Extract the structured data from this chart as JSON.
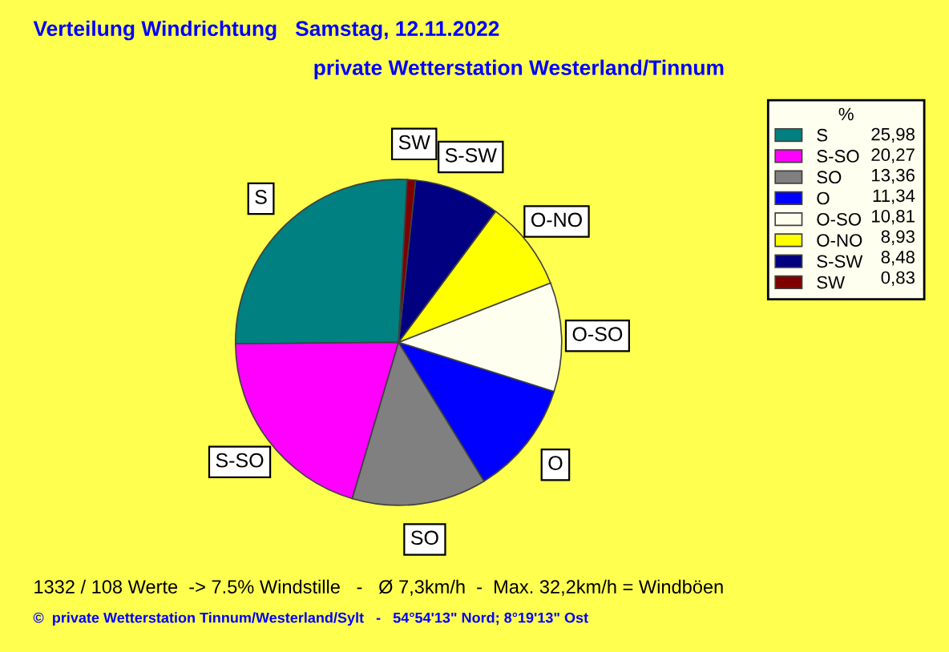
{
  "chart_data": {
    "type": "pie",
    "title": "Verteilung Windrichtung   Samstag, 12.11.2022",
    "subtitle": "private Wetterstation Westerland/Tinnum",
    "categories": [
      "S",
      "S-SO",
      "SO",
      "O",
      "O-SO",
      "O-NO",
      "S-SW",
      "SW"
    ],
    "values": [
      25.98,
      20.27,
      13.36,
      11.34,
      10.81,
      8.93,
      8.48,
      0.83
    ],
    "value_labels": [
      "25,98",
      "20,27",
      "13,36",
      "11,34",
      "10,81",
      "8,93",
      "8,48",
      "0,83"
    ],
    "colors": [
      "#008080",
      "#ff00ff",
      "#808080",
      "#0000ff",
      "#fffff0",
      "#ffff00",
      "#000080",
      "#800000"
    ],
    "legend": "right",
    "legend_title": "%",
    "annotations": [
      "1332 / 108 Werte  -> 7.5% Windstille   -   Ø 7,3km/h  -  Max. 32,2km/h = Windböen",
      "©  private Wetterstation Tinnum/Westerland/Sylt   -   54°54'13\" Nord; 8°19'13\" Ost"
    ]
  }
}
